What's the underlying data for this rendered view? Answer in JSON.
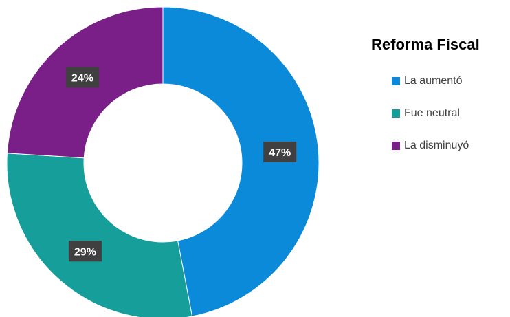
{
  "chart_data": {
    "type": "pie",
    "variant": "donut",
    "title": "Reforma Fiscal",
    "legend_position": "right",
    "categories": [
      "La aumentó",
      "Fue neutral",
      "La disminuyó"
    ],
    "values": [
      47,
      29,
      24
    ],
    "value_labels": [
      "47%",
      "29%",
      "24%"
    ],
    "colors": [
      "#0a8ad8",
      "#159e9a",
      "#7a1f88"
    ]
  },
  "legend": {
    "title": "Reforma Fiscal",
    "items": [
      {
        "label": "La aumentó",
        "color": "#0a8ad8"
      },
      {
        "label": "Fue neutral",
        "color": "#159e9a"
      },
      {
        "label": "La disminuyó",
        "color": "#7a1f88"
      }
    ]
  }
}
